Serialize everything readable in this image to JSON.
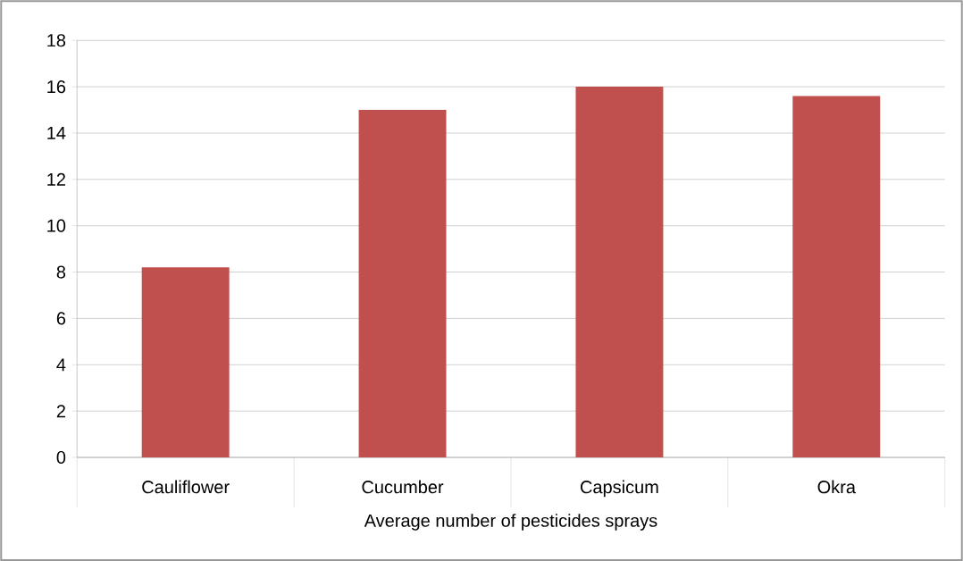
{
  "chart_data": {
    "type": "bar",
    "xlabel": "Average number of pesticides sprays",
    "categories": [
      "Cauliflower",
      "Cucumber",
      "Capsicum",
      "Okra"
    ],
    "values": [
      8.2,
      15.0,
      16.0,
      15.6
    ],
    "color": "#c0504d",
    "ylim": [
      0,
      18
    ],
    "yticks": [
      0,
      2,
      4,
      6,
      8,
      10,
      12,
      14,
      16,
      18
    ],
    "grid": "y"
  }
}
